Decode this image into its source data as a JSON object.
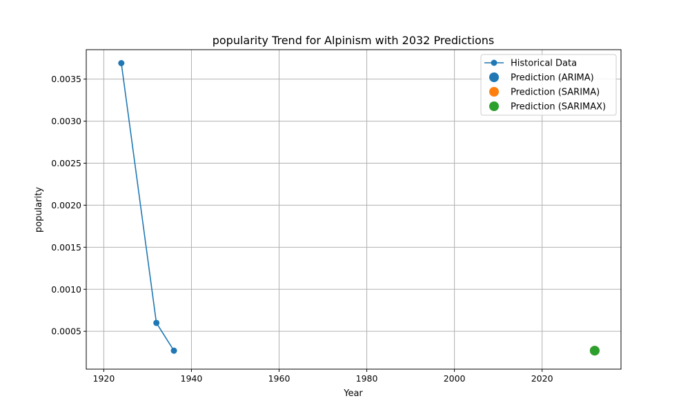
{
  "chart_data": {
    "type": "line",
    "title": "popularity Trend for Alpinism with 2032 Predictions",
    "xlabel": "Year",
    "ylabel": "popularity",
    "xlim": [
      1916,
      2038
    ],
    "ylim": [
      5e-05,
      0.00385
    ],
    "x_ticks": [
      1920,
      1940,
      1960,
      1980,
      2000,
      2020
    ],
    "x_tick_labels": [
      "1920",
      "1940",
      "1960",
      "1980",
      "2000",
      "2020"
    ],
    "y_ticks": [
      0.0005,
      0.001,
      0.0015,
      0.002,
      0.0025,
      0.003,
      0.0035
    ],
    "y_tick_labels": [
      "0.0005",
      "0.0010",
      "0.0015",
      "0.0020",
      "0.0025",
      "0.0030",
      "0.0035"
    ],
    "grid": true,
    "legend_position": "top-right",
    "series": [
      {
        "name": "Historical Data",
        "kind": "line-marker",
        "color": "#1f77b4",
        "x": [
          1924,
          1932,
          1936
        ],
        "y": [
          0.00369,
          0.0006,
          0.00027
        ]
      },
      {
        "name": "Prediction (ARIMA)",
        "kind": "point",
        "color": "#1f77b4",
        "x": [
          2032
        ],
        "y": [
          0.00027
        ]
      },
      {
        "name": "Prediction (SARIMA)",
        "kind": "point",
        "color": "#ff7f0e",
        "x": [
          2032
        ],
        "y": [
          0.00027
        ]
      },
      {
        "name": "Prediction (SARIMAX)",
        "kind": "point",
        "color": "#2ca02c",
        "x": [
          2032
        ],
        "y": [
          0.00027
        ]
      }
    ]
  }
}
